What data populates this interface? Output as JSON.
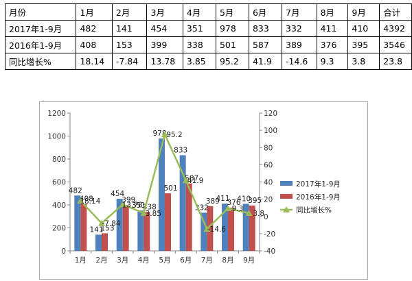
{
  "table": {
    "header": [
      "月份",
      "1月",
      "2月",
      "3月",
      "4月",
      "5月",
      "6月",
      "7月",
      "8月",
      "9月",
      "合计"
    ],
    "rows": [
      [
        "2017年1-9月",
        "482",
        "141",
        "454",
        "351",
        "978",
        "833",
        "332",
        "411",
        "410",
        "4392"
      ],
      [
        "2016年1-9月",
        "408",
        "153",
        "399",
        "338",
        "501",
        "587",
        "389",
        "376",
        "395",
        "3546"
      ],
      [
        "同比增长%",
        "18.14",
        "-7.84",
        "13.78",
        "3.85",
        "95.2",
        "41.9",
        "-14.6",
        "9.3",
        "3.8",
        "23.8"
      ]
    ]
  },
  "chart_data": {
    "type": "bar",
    "categories": [
      "1月",
      "2月",
      "3月",
      "4月",
      "5月",
      "6月",
      "7月",
      "8月",
      "9月"
    ],
    "series": [
      {
        "name": "2017年1-9月",
        "type": "bar",
        "axis": "left",
        "color": "#4f81bd",
        "values": [
          482,
          141,
          454,
          351,
          978,
          833,
          332,
          411,
          410
        ],
        "labels": [
          "482",
          "141",
          "454",
          "351",
          "978",
          "833",
          "332",
          "411",
          "410"
        ]
      },
      {
        "name": "2016年1-9月",
        "type": "bar",
        "axis": "left",
        "color": "#c0504d",
        "values": [
          408,
          153,
          399,
          338,
          501,
          587,
          389,
          376,
          395
        ],
        "labels": [
          "408",
          "153",
          "399",
          "338",
          "501",
          "587",
          "389",
          "376",
          "395"
        ]
      },
      {
        "name": "同比增长%",
        "type": "line",
        "axis": "right",
        "color": "#9bbb59",
        "values": [
          18.14,
          -7.84,
          13.78,
          3.85,
          95.2,
          41.9,
          -14.6,
          9.3,
          3.8
        ],
        "labels": [
          "18.14",
          "-7.84",
          "13.78",
          "3.85",
          "95.2",
          "41.9",
          "-14.6",
          "9.3",
          "3.8"
        ]
      }
    ],
    "y_left": {
      "min": 0,
      "max": 1200,
      "ticks": [
        "0",
        "200",
        "400",
        "600",
        "800",
        "1000",
        "1200"
      ]
    },
    "y_right": {
      "min": -40,
      "max": 120,
      "ticks": [
        "-40",
        "-20",
        "0",
        "20",
        "40",
        "60",
        "80",
        "100",
        "120"
      ]
    },
    "legend_position": "right",
    "grid": false
  }
}
